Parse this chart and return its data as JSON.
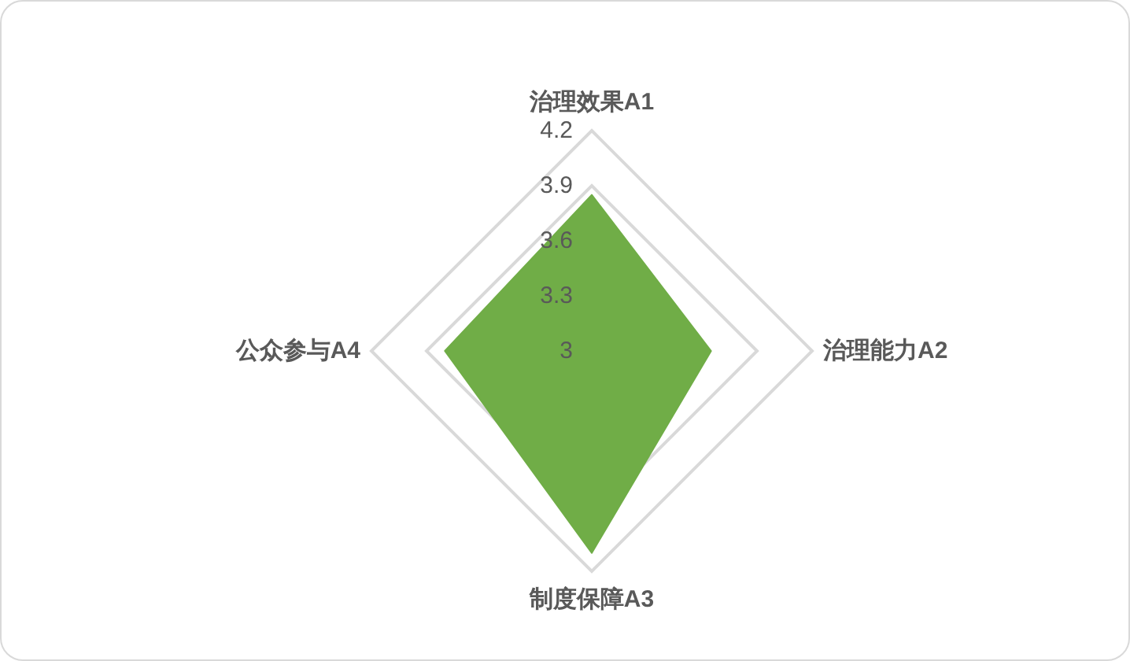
{
  "chart_data": {
    "type": "radar",
    "categories": [
      "治理效果A1",
      "治理能力A2",
      "制度保障A3",
      "公众参与A4"
    ],
    "series": [
      {
        "color": "#70ad47",
        "values": [
          3.85,
          3.65,
          4.1,
          3.8
        ]
      }
    ],
    "ylim": [
      3,
      4.2
    ],
    "yticks": [
      3,
      3.3,
      3.6,
      3.9,
      4.2
    ],
    "grid": true
  }
}
